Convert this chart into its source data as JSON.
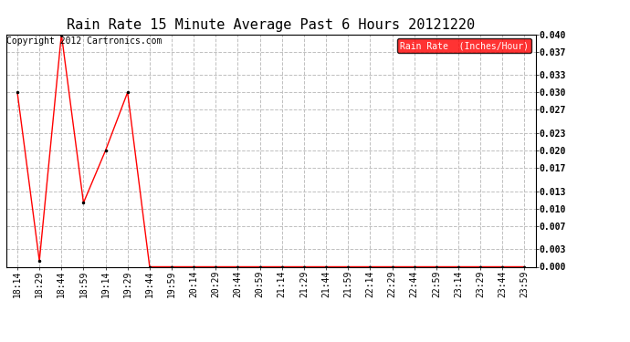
{
  "title": "Rain Rate 15 Minute Average Past 6 Hours 20121220",
  "copyright_text": "Copyright 2012 Cartronics.com",
  "legend_label": "Rain Rate  (Inches/Hour)",
  "legend_bg": "#FF0000",
  "legend_fg": "#FFFFFF",
  "x_labels": [
    "18:14",
    "18:29",
    "18:44",
    "18:59",
    "19:14",
    "19:29",
    "19:44",
    "19:59",
    "20:14",
    "20:29",
    "20:44",
    "20:59",
    "21:14",
    "21:29",
    "21:44",
    "21:59",
    "22:14",
    "22:29",
    "22:44",
    "22:59",
    "23:14",
    "23:29",
    "23:44",
    "23:59"
  ],
  "y_values": [
    0.03,
    0.001,
    0.04,
    0.011,
    0.02,
    0.03,
    0.0,
    0.0,
    0.0,
    0.0,
    0.0,
    0.0,
    0.0,
    0.0,
    0.0,
    0.0,
    0.0,
    0.0,
    0.0,
    0.0,
    0.0,
    0.0,
    0.0,
    0.0
  ],
  "y_ticks": [
    0.0,
    0.003,
    0.007,
    0.01,
    0.013,
    0.017,
    0.02,
    0.023,
    0.027,
    0.03,
    0.033,
    0.037,
    0.04
  ],
  "ylim": [
    0.0,
    0.04
  ],
  "line_color": "#FF0000",
  "marker_color": "#000000",
  "bg_color": "#FFFFFF",
  "plot_bg_color": "#FFFFFF",
  "grid_color": "#C0C0C0",
  "grid_style": "--",
  "title_fontsize": 11,
  "tick_fontsize": 7,
  "copyright_fontsize": 7,
  "figsize": [
    6.9,
    3.75
  ],
  "dpi": 100
}
